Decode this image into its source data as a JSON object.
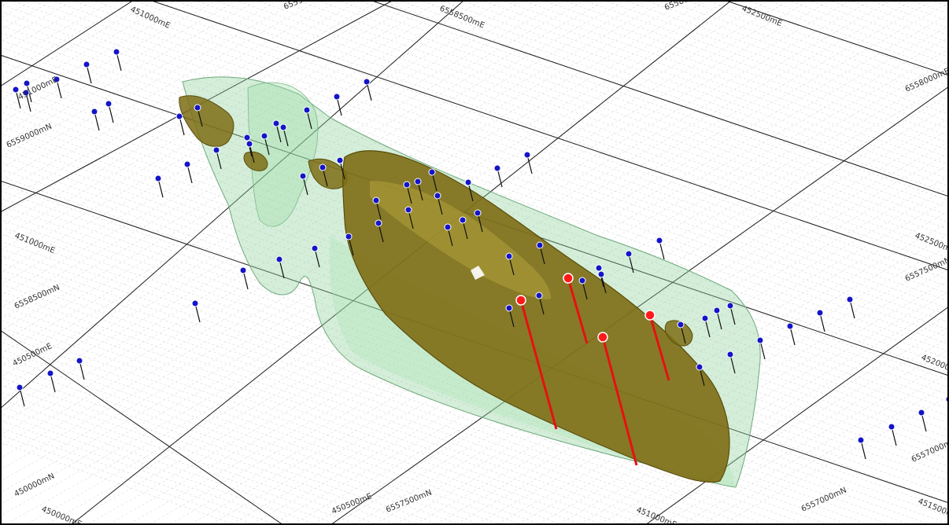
{
  "grid_labels": [
    "451000mE",
    "6559000mN",
    "6558500mE",
    "6558000mN",
    "452500mE",
    "6558000mE",
    "451000mE",
    "6559000mN",
    "451000mE",
    "6558500mN",
    "450500mE",
    "450000mN",
    "450000mE",
    "450500mE",
    "6557500mN",
    "451000mE",
    "6557000mN",
    "451500mE",
    "6557000mN",
    "452000mE",
    "6557500mN",
    "452500mE"
  ],
  "colors": {
    "background": "#ffffff",
    "fine_grid": "#cfcfcf",
    "major_grid": "#1a1a1a",
    "envelope_fill": "#8fd39a",
    "orebody_fill": "#7d6d14",
    "orebody_highlight": "#b3a33a",
    "drillhole_collar": "#1414c8",
    "drillhole_trace": "#111111",
    "highlight_collar": "#ff1a1a",
    "highlight_trace": "#e81010"
  },
  "icons": {
    "drillhole_collar": "blue-dot-icon",
    "highlighted_drillhole": "red-dot-icon"
  }
}
